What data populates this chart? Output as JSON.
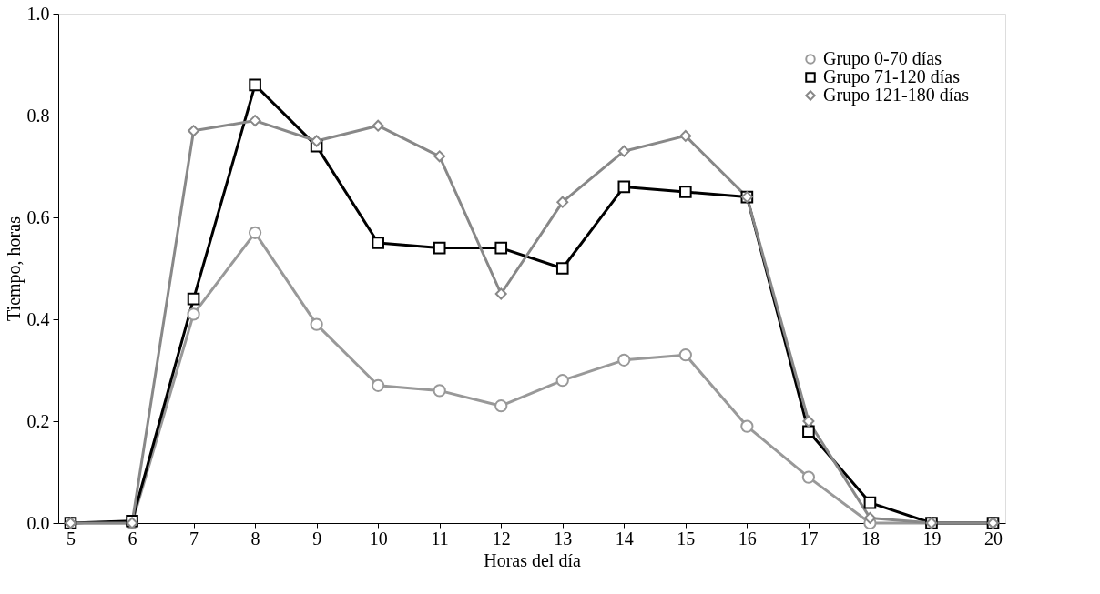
{
  "chart_data": {
    "type": "line",
    "xlabel": "Horas del día",
    "ylabel": "Tiempo, horas",
    "x": [
      5,
      6,
      7,
      8,
      9,
      10,
      11,
      12,
      13,
      14,
      15,
      16,
      17,
      18,
      19,
      20
    ],
    "series": [
      {
        "name": "Grupo 0-70 días",
        "color": "#999999",
        "marker": "circle",
        "values": [
          0,
          0,
          0.41,
          0.57,
          0.39,
          0.27,
          0.26,
          0.23,
          0.28,
          0.32,
          0.33,
          0.19,
          0.09,
          0,
          0,
          0
        ]
      },
      {
        "name": "Grupo 71-120  días",
        "color": "#000000",
        "marker": "square",
        "values": [
          0,
          0.004,
          0.44,
          0.86,
          0.74,
          0.55,
          0.54,
          0.54,
          0.5,
          0.66,
          0.65,
          0.64,
          0.18,
          0.04,
          0,
          0
        ]
      },
      {
        "name": "Grupo 121-180 días",
        "color": "#888888",
        "marker": "diamond",
        "values": [
          0,
          0,
          0.77,
          0.79,
          0.75,
          0.78,
          0.72,
          0.45,
          0.63,
          0.73,
          0.76,
          0.64,
          0.2,
          0.01,
          0,
          0
        ]
      }
    ],
    "xlim": [
      4.8,
      20.2
    ],
    "ylim": [
      0,
      1.0
    ],
    "xticks": [
      5,
      6,
      7,
      8,
      9,
      10,
      11,
      12,
      13,
      14,
      15,
      16,
      17,
      18,
      19,
      20
    ],
    "yticks": [
      {
        "value": 0,
        "label": "0.0"
      },
      {
        "value": 0.2,
        "label": "0.2"
      },
      {
        "value": 0.4,
        "label": "0.4"
      },
      {
        "value": 0.6,
        "label": "0.6"
      },
      {
        "value": 0.8,
        "label": "0.8"
      },
      {
        "value": 1.0,
        "label": "1.0"
      }
    ],
    "grid": false,
    "legend": "top right",
    "line_style": "solid"
  }
}
